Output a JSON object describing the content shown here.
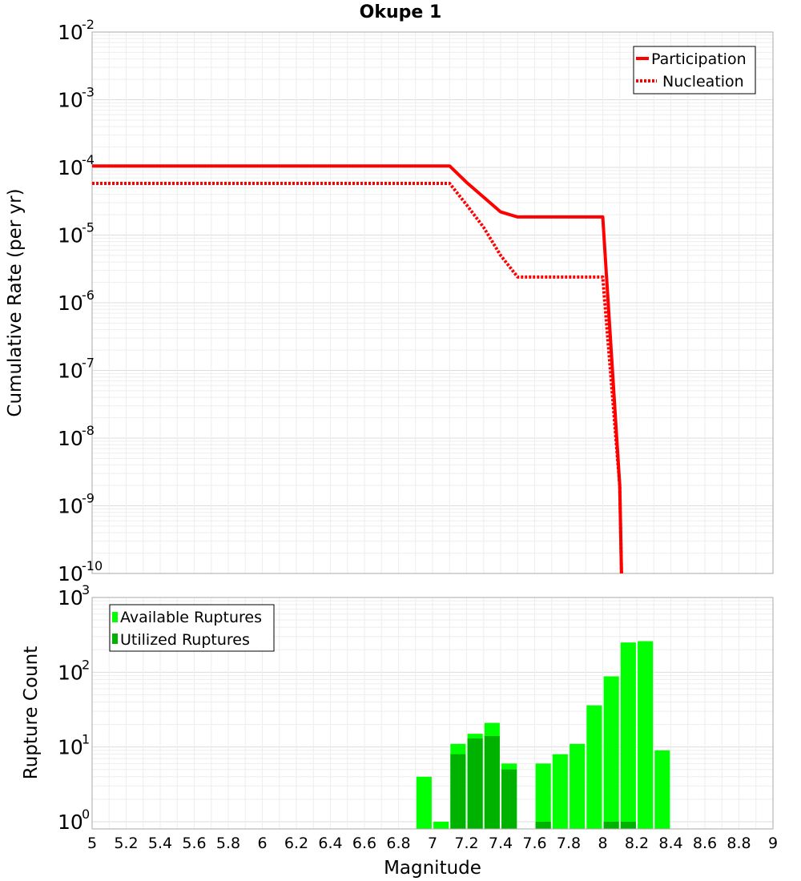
{
  "chart_data": [
    {
      "type": "line",
      "title": "Okupe 1",
      "xlabel": "",
      "ylabel": "Cumulative Rate (per yr)",
      "xlim": [
        5,
        9
      ],
      "ylim": [
        1e-10,
        0.01
      ],
      "yscale": "log",
      "grid": true,
      "legend_position": "top-right",
      "y_ticks": [
        {
          "base": "10",
          "exp": "-2"
        },
        {
          "base": "10",
          "exp": "-3"
        },
        {
          "base": "10",
          "exp": "-4"
        },
        {
          "base": "10",
          "exp": "-5"
        },
        {
          "base": "10",
          "exp": "-6"
        },
        {
          "base": "10",
          "exp": "-7"
        },
        {
          "base": "10",
          "exp": "-8"
        },
        {
          "base": "10",
          "exp": "-9"
        },
        {
          "base": "10",
          "exp": "-10"
        }
      ],
      "series": [
        {
          "name": "Participation",
          "color": "#ff0000",
          "style": "solid",
          "x": [
            5.0,
            7.1,
            7.2,
            7.4,
            7.5,
            8.0,
            8.1,
            8.11
          ],
          "y": [
            0.000105,
            0.000105,
            6e-05,
            2.2e-05,
            1.85e-05,
            1.85e-05,
            2e-09,
            1e-10
          ]
        },
        {
          "name": "Nucleation",
          "color": "#ff0000",
          "style": "dotted",
          "x": [
            5.0,
            7.1,
            7.2,
            7.3,
            7.4,
            7.5,
            8.0,
            8.1,
            8.11
          ],
          "y": [
            5.8e-05,
            5.8e-05,
            2.8e-05,
            1.3e-05,
            5e-06,
            2.4e-06,
            2.4e-06,
            2e-09,
            1e-10
          ]
        }
      ]
    },
    {
      "type": "bar",
      "title": "",
      "xlabel": "Magnitude",
      "ylabel": "Rupture Count",
      "xlim": [
        5,
        9
      ],
      "ylim": [
        0.8,
        1000
      ],
      "yscale": "log",
      "grid": true,
      "legend_position": "top-left",
      "x_ticks": [
        "5",
        "5.2",
        "5.4",
        "5.6",
        "5.8",
        "6",
        "6.2",
        "6.4",
        "6.6",
        "6.8",
        "7",
        "7.2",
        "7.4",
        "7.6",
        "7.8",
        "8",
        "8.2",
        "8.4",
        "8.6",
        "8.8",
        "9"
      ],
      "y_ticks": [
        {
          "base": "10",
          "exp": "3"
        },
        {
          "base": "10",
          "exp": "2"
        },
        {
          "base": "10",
          "exp": "1"
        },
        {
          "base": "10",
          "exp": "0"
        }
      ],
      "categories": [
        6.95,
        7.05,
        7.15,
        7.25,
        7.35,
        7.45,
        7.55,
        7.65,
        7.75,
        7.85,
        7.95,
        8.05,
        8.15,
        8.25,
        8.35
      ],
      "series": [
        {
          "name": "Available Ruptures",
          "color": "#00ff00",
          "values": [
            4,
            1,
            11,
            15,
            21,
            6,
            0,
            6,
            8,
            11,
            36,
            88,
            250,
            260,
            9
          ]
        },
        {
          "name": "Utilized Ruptures",
          "color": "#00b200",
          "values": [
            0,
            0,
            8,
            13,
            14,
            5,
            0,
            1,
            0,
            0,
            0,
            1,
            1,
            0,
            0
          ]
        }
      ]
    }
  ]
}
